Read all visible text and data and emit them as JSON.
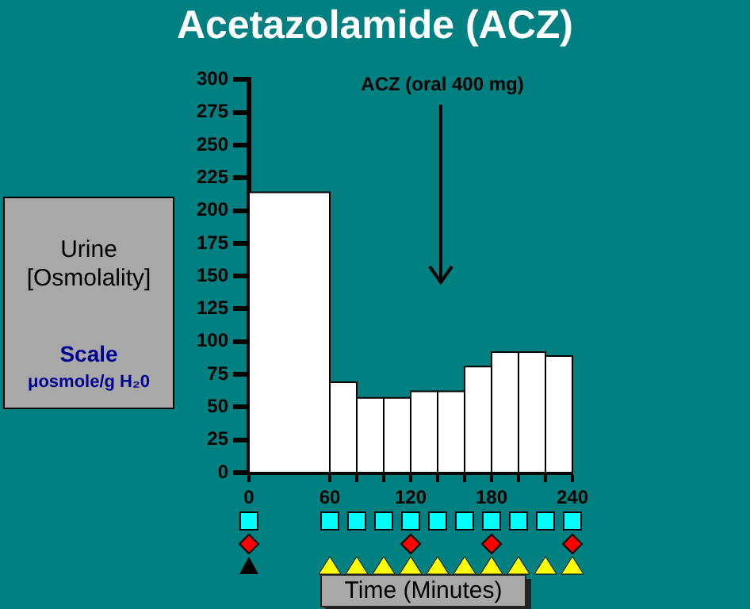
{
  "chart_data": {
    "type": "histogram",
    "title": "Acetazolamide (ACZ)",
    "ylabel": "Urine [Osmolality]",
    "xlabel": "Time (Minutes)",
    "bins": [
      0,
      60,
      80,
      100,
      120,
      140,
      160,
      180,
      200,
      220,
      240
    ],
    "values": [
      214,
      69,
      57,
      57,
      62,
      62,
      81,
      92,
      92,
      89
    ],
    "color": "#ffffff",
    "xlim": [
      0,
      240
    ],
    "xticks": [
      0,
      60,
      {
        "value": 80,
        "label": null
      },
      {
        "value": 100,
        "label": null
      },
      120,
      {
        "value": 140,
        "label": null
      },
      {
        "value": 160,
        "label": null
      },
      180,
      {
        "value": 200,
        "label": null
      },
      {
        "value": 220,
        "label": null
      },
      240
    ],
    "ylim": [
      0,
      300
    ],
    "yticks": [
      0,
      25,
      50,
      75,
      100,
      125,
      150,
      175,
      200,
      225,
      250,
      275,
      300
    ],
    "annotations": [
      "ACZ (oral 400 mg)",
      "Scale",
      "μosmole/g H₂0"
    ],
    "grid": false,
    "legend": false
  }
}
